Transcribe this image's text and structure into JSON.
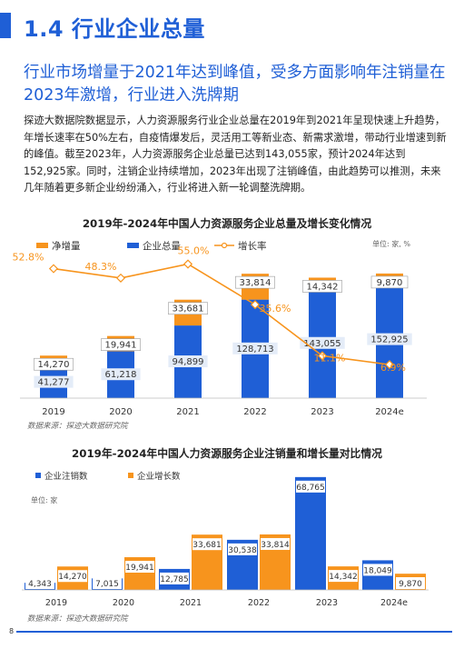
{
  "section": {
    "title": "1.4 行业企业总量"
  },
  "subtitle": "行业市场增量于2021年达到峰值，受多方面影响年注销量在2023年激增，行业进入洗牌期",
  "body": "探迹大数据院数据显示，人力资源服务行业企业总量在2019年到2021年呈现快速上升趋势，年增长速率在50%左右，自疫情爆发后，灵活用工等新业态、新需求激增，带动行业增速到新的峰值。截至2023年，人力资源服务企业总量已达到143,055家，预计2024年达到152,925家。同时，注销企业持续增加，2023年出现了注销峰值，由此趋势可以推测，未来几年随着更多新企业纷纷涌入，行业将进入新一轮调整洗牌期。",
  "colors": {
    "blue": "#1f5fd6",
    "orange": "#f7941d",
    "label_bg": "#e4ecf8"
  },
  "chart_data": [
    {
      "type": "bar",
      "title": "2019年-2024年中国人力资源服务企业总量及增长变化情况",
      "unit": "单位: 家, %",
      "categories": [
        "2019",
        "2020",
        "2021",
        "2022",
        "2023",
        "2024e"
      ],
      "legend": [
        "净增量",
        "企业总量",
        "增长率"
      ],
      "series": [
        {
          "name": "企业总量",
          "values": [
            41277,
            61218,
            94899,
            128713,
            143055,
            152925
          ]
        },
        {
          "name": "净增量",
          "values": [
            14270,
            19941,
            33681,
            33814,
            14342,
            9870
          ]
        },
        {
          "name": "增长率",
          "values": [
            52.8,
            48.3,
            55.0,
            35.6,
            11.1,
            6.9
          ]
        }
      ],
      "value_labels": {
        "total": [
          "41,277",
          "61,218",
          "94,899",
          "128,713",
          "143,055",
          "152,925"
        ],
        "increase": [
          "14,270",
          "19,941",
          "33,681",
          "33,814",
          "14,342",
          "9,870"
        ],
        "rate": [
          "52.8%",
          "48.3%",
          "55.0%",
          "35.6%",
          "11.1%",
          "6.9%"
        ]
      },
      "source": "数据来源：探迹大数据研究院"
    },
    {
      "type": "bar",
      "title": "2019年-2024年中国人力资源服务企业注销量和增长量对比情况",
      "unit": "单位: 家",
      "categories": [
        "2019",
        "2020",
        "2021",
        "2022",
        "2023",
        "2024e"
      ],
      "legend": [
        "企业注销数",
        "企业增长数"
      ],
      "series": [
        {
          "name": "企业注销数",
          "values": [
            4343,
            7015,
            12785,
            30538,
            68765,
            18049
          ]
        },
        {
          "name": "企业增长数",
          "values": [
            14270,
            19941,
            33681,
            33814,
            14342,
            9870
          ]
        }
      ],
      "value_labels": {
        "cancel": [
          "4,343",
          "7,015",
          "12,785",
          "30,538",
          "68,765",
          "18,049"
        ],
        "growth": [
          "14,270",
          "19,941",
          "33,681",
          "33,814",
          "14,342",
          "9,870"
        ]
      },
      "source": "数据来源：探迹大数据研究院"
    }
  ],
  "page_number": "8"
}
